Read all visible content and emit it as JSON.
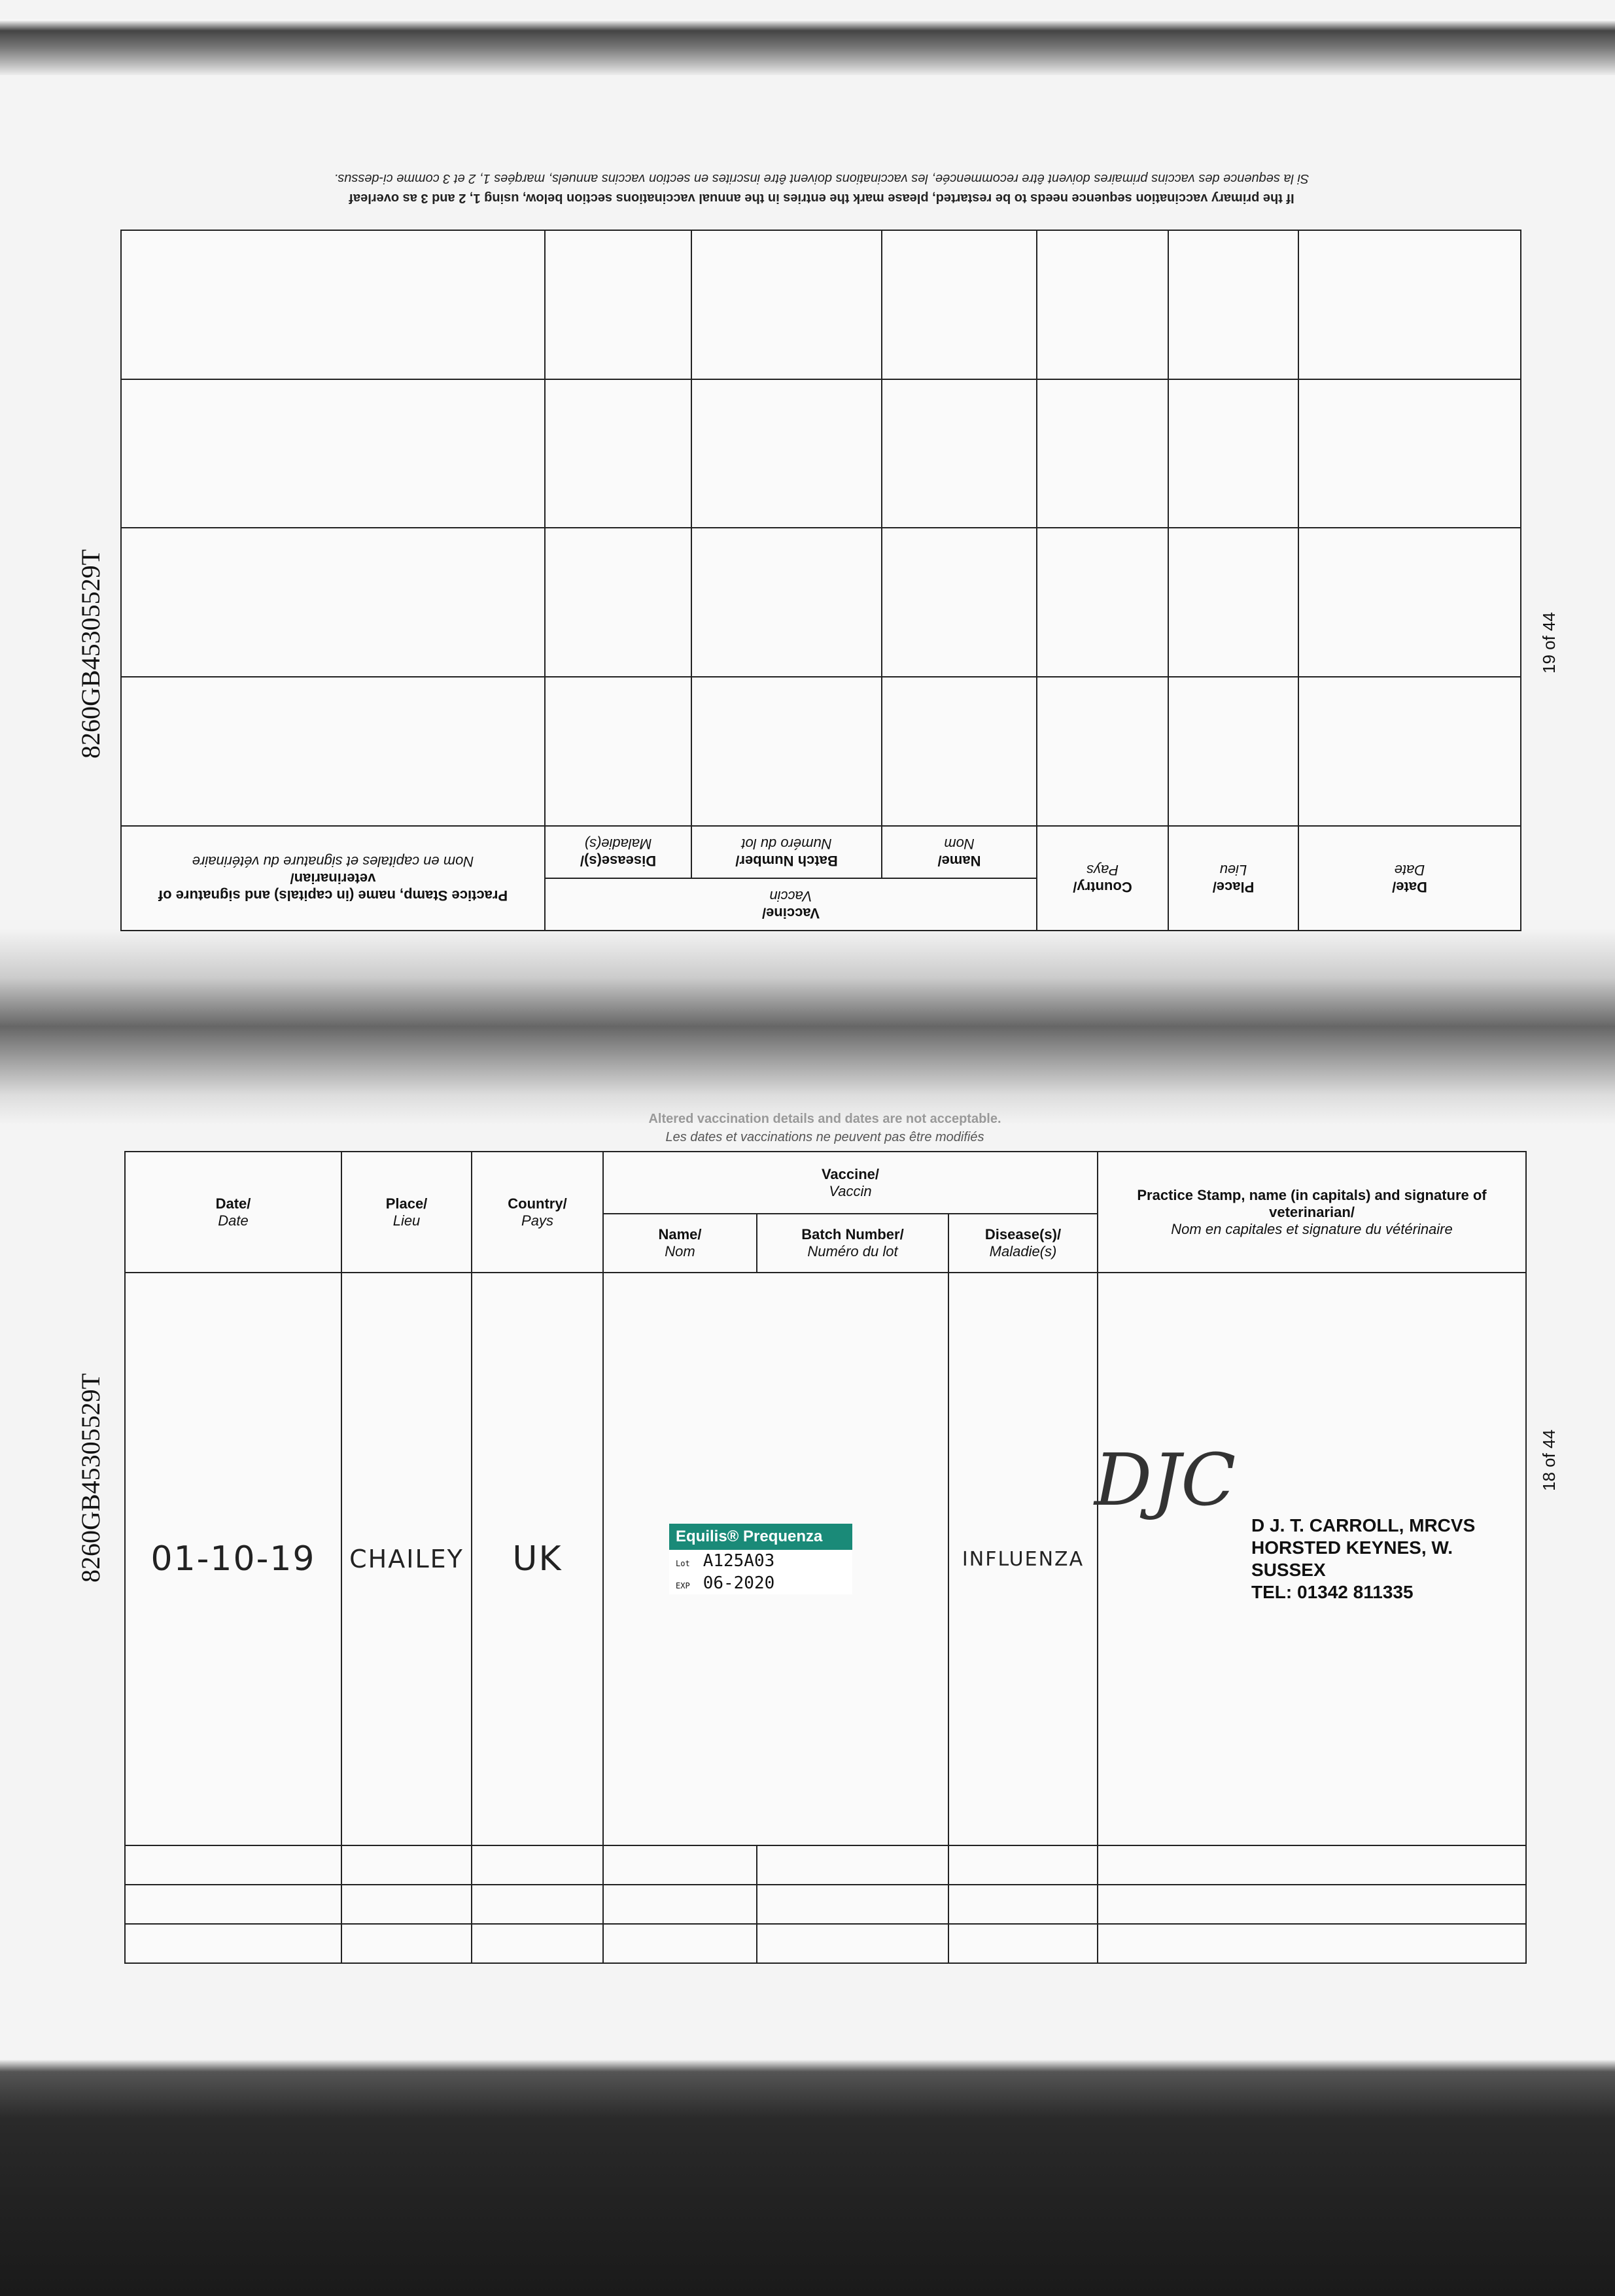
{
  "passport_number": "8260GB45305529T",
  "pages": {
    "upper": "19 of 44",
    "lower": "18 of 44"
  },
  "headers": {
    "date": "Date/",
    "date_fr": "Date",
    "place": "Place/",
    "place_fr": "Lieu",
    "country": "Country/",
    "country_fr": "Pays",
    "vaccine": "Vaccine/",
    "vaccine_fr": "Vaccin",
    "name": "Name/",
    "name_fr": "Nom",
    "batch": "Batch Number/",
    "batch_fr": "Numéro du lot",
    "disease": "Disease(s)/",
    "disease_fr": "Maladie(s)",
    "stamp": "Practice Stamp, name (in capitals) and signature of veterinarian/",
    "stamp_fr": "Nom en capitales et signature du vétérinaire"
  },
  "notes": {
    "altered_en": "Altered vaccination details and dates are not acceptable.",
    "altered_fr": "Les dates et vaccinations ne peuvent pas être modifiés",
    "restart_en": "If the primary vaccination sequence needs to be restarted, please mark the entries in the annual vaccinations section below, using 1, 2 and 3 as overleaf",
    "restart_fr": "Si la sequence des vaccins primaires doivent être recommencée, les vaccinations doivent être inscrites en section vaccins annuels, marqées 1, 2 et 3 comme ci-dessus."
  },
  "entry": {
    "date": "01-10-19",
    "place": "CHAILEY",
    "country": "UK",
    "vaccine_label": {
      "name": "Equilis® Prequenza",
      "lot_label": "Lot",
      "lot": "A125A03",
      "exp_label": "EXP",
      "exp": "06-2020",
      "color": "#1a8a78"
    },
    "disease": "INFLUENZA",
    "stamp": [
      "D J. T. CARROLL, MRCVS",
      "HORSTED KEYNES, W. SUSSEX",
      "TEL: 01342 811335"
    ]
  }
}
